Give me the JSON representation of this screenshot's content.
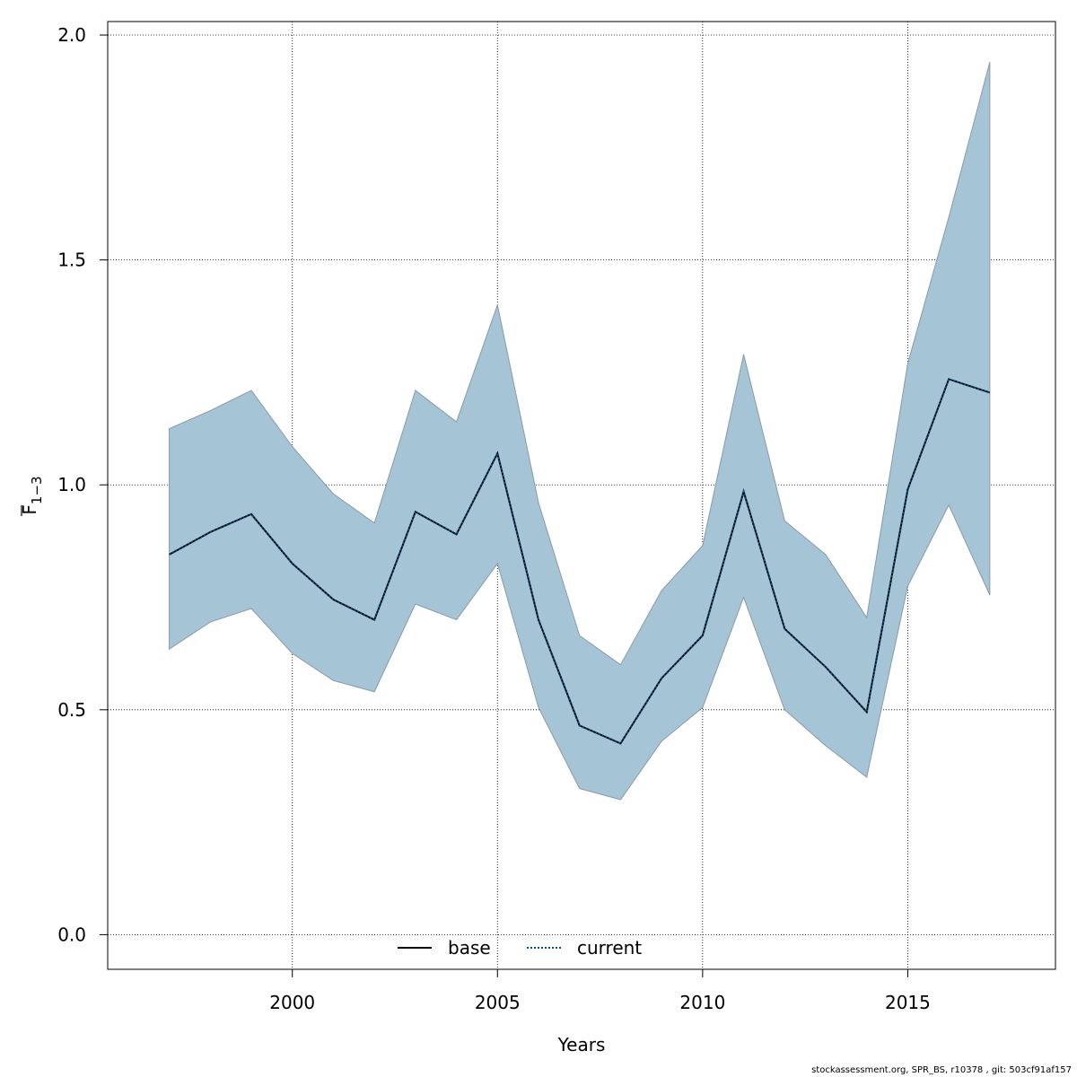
{
  "chart_data": {
    "type": "line",
    "xlabel": "Years",
    "ylabel": "F",
    "ylabel_sub": "1−3",
    "xlim": [
      1995.5,
      2018.6
    ],
    "ylim": [
      -0.077,
      2.03
    ],
    "x_ticks": [
      2000,
      2005,
      2010,
      2015
    ],
    "y_ticks": [
      0.0,
      0.5,
      1.0,
      1.5,
      2.0
    ],
    "y_tick_labels": [
      "0.0",
      "0.5",
      "1.0",
      "1.5",
      "2.0"
    ],
    "grid": true,
    "x": [
      1997,
      1998,
      1999,
      2000,
      2001,
      2002,
      2003,
      2004,
      2005,
      2006,
      2007,
      2008,
      2009,
      2010,
      2011,
      2012,
      2013,
      2014,
      2015,
      2016,
      2017
    ],
    "series": [
      {
        "name": "current",
        "style": "dotted",
        "color": "#00507d",
        "values": [
          0.845,
          0.895,
          0.935,
          0.825,
          0.745,
          0.7,
          0.94,
          0.89,
          1.07,
          0.7,
          0.465,
          0.425,
          0.57,
          0.665,
          0.985,
          0.68,
          0.595,
          0.495,
          0.99,
          1.235,
          1.205
        ],
        "lower": [
          0.635,
          0.695,
          0.725,
          0.625,
          0.565,
          0.54,
          0.735,
          0.7,
          0.825,
          0.505,
          0.325,
          0.3,
          0.43,
          0.505,
          0.75,
          0.5,
          0.42,
          0.35,
          0.775,
          0.955,
          0.755
        ],
        "upper": [
          1.125,
          1.165,
          1.21,
          1.085,
          0.98,
          0.915,
          1.21,
          1.14,
          1.4,
          0.96,
          0.665,
          0.6,
          0.765,
          0.865,
          1.29,
          0.92,
          0.845,
          0.705,
          1.27,
          1.595,
          1.94
        ]
      }
    ],
    "band_color": "#a5c4d6",
    "legend": {
      "placement": "bottom-center",
      "entries": [
        {
          "label": "base",
          "style": "solid",
          "color": "#000000"
        },
        {
          "label": "current",
          "style": "dotted",
          "color": "#00507d"
        }
      ]
    }
  },
  "footer_text": "stockassessment.org, SPR_BS, r10378 , git: 503cf91af157"
}
